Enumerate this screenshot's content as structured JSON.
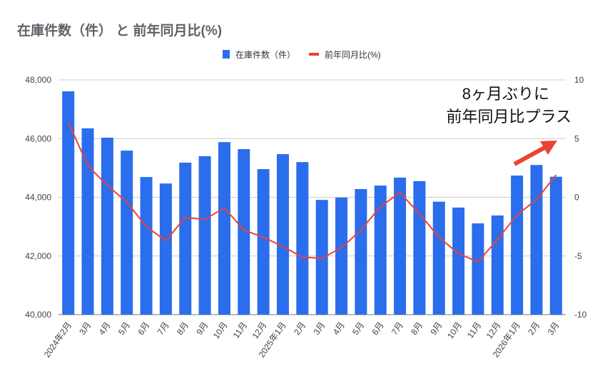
{
  "chart_data": {
    "type": "bar+line",
    "title": "在庫件数（件） と 前年同月比(%)",
    "legend_position": "top",
    "grid": true,
    "categories": [
      "2024年2月",
      "3月",
      "4月",
      "5月",
      "6月",
      "7月",
      "8月",
      "9月",
      "10月",
      "11月",
      "12月",
      "2025年1月",
      "2月",
      "3月",
      "4月",
      "5月",
      "6月",
      "7月",
      "8月",
      "9月",
      "10月",
      "11月",
      "12月",
      "2026年1月",
      "2月",
      "3月"
    ],
    "series": [
      {
        "name": "在庫件数（件）",
        "type": "bar",
        "axis": "left",
        "color": "#2a6ded",
        "values": [
          47610,
          46350,
          46030,
          45590,
          44690,
          44470,
          45180,
          45400,
          45880,
          45640,
          44960,
          45470,
          45200,
          43910,
          43990,
          44280,
          44400,
          44670,
          44550,
          43850,
          43650,
          43110,
          43380,
          44740,
          45100,
          44700
        ]
      },
      {
        "name": "前年同月比(%)",
        "type": "line",
        "axis": "right",
        "color": "#ea4335",
        "values": [
          6.4,
          2.7,
          1.0,
          -0.4,
          -2.5,
          -3.7,
          -1.7,
          -1.9,
          -0.9,
          -2.8,
          -3.4,
          -4.2,
          -5.1,
          -5.2,
          -4.3,
          -2.8,
          -0.8,
          0.4,
          -1.4,
          -3.4,
          -4.8,
          -5.5,
          -3.6,
          -1.5,
          -0.2,
          1.9
        ]
      }
    ],
    "y_left": {
      "range": [
        40000,
        48000
      ],
      "ticks": [
        "40,000",
        "42,000",
        "44,000",
        "46,000",
        "48,000"
      ]
    },
    "y_right": {
      "range": [
        -10,
        10
      ],
      "ticks": [
        "-10",
        "-5",
        "0",
        "5",
        "10"
      ]
    },
    "annotation": {
      "lines": [
        "8ヶ月ぶりに",
        "前年同月比プラス"
      ],
      "arrow_color": "#ea4335"
    }
  }
}
